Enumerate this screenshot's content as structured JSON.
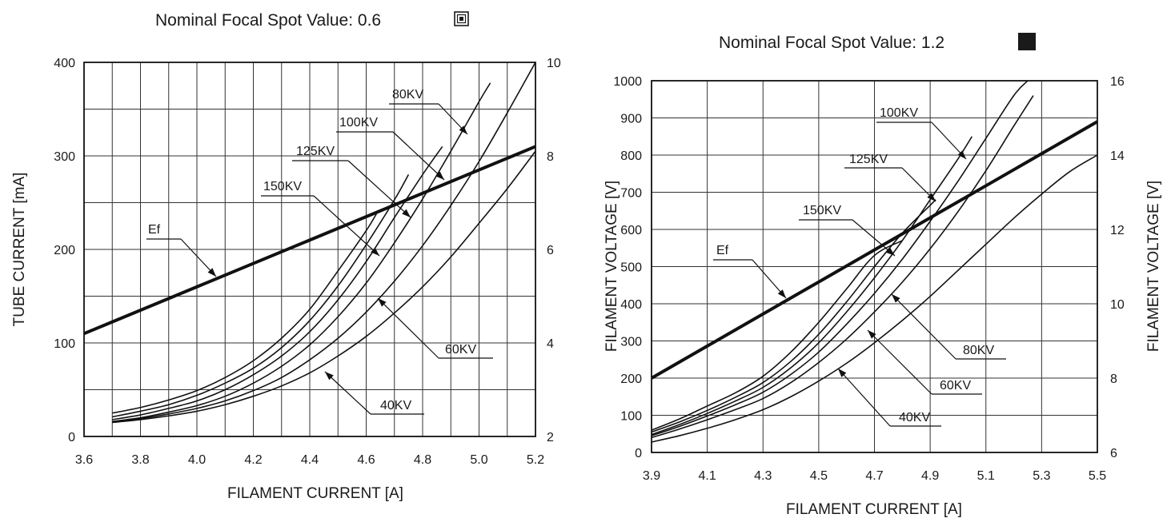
{
  "chart_data": [
    {
      "type": "line",
      "title": "Nominal Focal Spot Value: 0.6",
      "title_icon": "focal-spot-small-icon",
      "xlabel": "FILAMENT CURRENT  [A]",
      "ylabel": "TUBE CURRENT  [mA]",
      "y2label": "",
      "xlim": [
        3.6,
        5.2
      ],
      "ylim": [
        0,
        400
      ],
      "y2lim": [
        2,
        10
      ],
      "grid": true,
      "xticks": [
        "3.6",
        "3.8",
        "4.0",
        "4.2",
        "4.4",
        "4.6",
        "4.8",
        "5.0",
        "5.2"
      ],
      "yticks": [
        "0",
        "100",
        "200",
        "300",
        "400"
      ],
      "y2ticks": [
        "2",
        "4",
        "6",
        "8",
        "10"
      ],
      "series": [
        {
          "name": "Ef",
          "axis": "right",
          "bold": true,
          "x": [
            3.6,
            5.2
          ],
          "y": [
            4.2,
            8.2
          ]
        },
        {
          "name": "150KV",
          "x": [
            3.7,
            3.8,
            3.9,
            4.0,
            4.1,
            4.2,
            4.3,
            4.4,
            4.5,
            4.6,
            4.64
          ],
          "y": [
            25,
            31,
            39,
            49,
            63,
            81,
            105,
            136,
            177,
            220,
            240
          ]
        },
        {
          "name": "125KV",
          "x": [
            3.7,
            3.8,
            3.9,
            4.0,
            4.1,
            4.2,
            4.3,
            4.4,
            4.5,
            4.6,
            4.7,
            4.75
          ],
          "y": [
            21,
            27,
            34,
            44,
            57,
            73,
            95,
            124,
            161,
            205,
            253,
            280
          ]
        },
        {
          "name": "100KV",
          "x": [
            3.7,
            3.8,
            3.9,
            4.0,
            4.1,
            4.2,
            4.3,
            4.4,
            4.5,
            4.6,
            4.7,
            4.8,
            4.87
          ],
          "y": [
            18,
            23,
            30,
            38,
            50,
            66,
            86,
            112,
            146,
            187,
            234,
            280,
            310
          ]
        },
        {
          "name": "80KV",
          "x": [
            3.7,
            3.8,
            3.9,
            4.0,
            4.1,
            4.2,
            4.3,
            4.4,
            4.5,
            4.6,
            4.7,
            4.8,
            4.9,
            5.0,
            5.04
          ],
          "y": [
            16,
            20,
            26,
            33,
            43,
            57,
            75,
            98,
            128,
            164,
            207,
            254,
            305,
            358,
            378
          ]
        },
        {
          "name": "60KV",
          "x": [
            3.7,
            3.8,
            3.9,
            4.0,
            4.1,
            4.2,
            4.3,
            4.4,
            4.5,
            4.6,
            4.7,
            4.8,
            4.9,
            5.0,
            5.1,
            5.2
          ],
          "y": [
            15,
            19,
            24,
            30,
            38,
            49,
            63,
            82,
            105,
            133,
            166,
            204,
            247,
            294,
            346,
            400
          ]
        },
        {
          "name": "40KV",
          "x": [
            3.7,
            3.8,
            3.9,
            4.0,
            4.1,
            4.2,
            4.3,
            4.4,
            4.5,
            4.6,
            4.7,
            4.8,
            4.9,
            5.0,
            5.1,
            5.2
          ],
          "y": [
            15,
            18,
            22,
            27,
            34,
            43,
            54,
            68,
            86,
            107,
            132,
            160,
            192,
            228,
            265,
            305
          ]
        }
      ]
    },
    {
      "type": "line",
      "title": "Nominal Focal Spot Value: 1.2",
      "title_icon": "focal-spot-large-icon",
      "xlabel": "FILAMENT CURRENT  [A]",
      "ylabel": "FILAMENT VOLTAGE  [V]",
      "y2label": "FILAMENT VOLTAGE  [V]",
      "xlim": [
        3.9,
        5.5
      ],
      "ylim": [
        0,
        1000
      ],
      "y2lim": [
        6,
        16
      ],
      "grid": true,
      "xticks": [
        "3.9",
        "4.1",
        "4.3",
        "4.5",
        "4.7",
        "4.9",
        "5.1",
        "5.3",
        "5.5"
      ],
      "yticks": [
        "0",
        "100",
        "200",
        "300",
        "400",
        "500",
        "600",
        "700",
        "800",
        "900",
        "1000"
      ],
      "y2ticks": [
        "6",
        "8",
        "10",
        "12",
        "14",
        "16"
      ],
      "series": [
        {
          "name": "Ef",
          "axis": "right",
          "bold": true,
          "x": [
            3.9,
            5.5
          ],
          "y": [
            8.0,
            14.9
          ]
        },
        {
          "name": "150KV",
          "x": [
            3.9,
            4.0,
            4.1,
            4.2,
            4.3,
            4.4,
            4.5,
            4.6,
            4.7,
            4.8
          ],
          "y": [
            60,
            90,
            125,
            160,
            205,
            270,
            350,
            440,
            530,
            570
          ]
        },
        {
          "name": "125KV",
          "x": [
            3.9,
            4.0,
            4.1,
            4.2,
            4.3,
            4.4,
            4.5,
            4.6,
            4.7,
            4.8,
            4.9,
            4.92
          ],
          "y": [
            55,
            82,
            113,
            148,
            188,
            245,
            318,
            405,
            500,
            590,
            665,
            680
          ]
        },
        {
          "name": "100KV",
          "x": [
            3.9,
            4.0,
            4.1,
            4.2,
            4.3,
            4.4,
            4.5,
            4.6,
            4.7,
            4.8,
            4.9,
            5.0,
            5.05
          ],
          "y": [
            48,
            75,
            105,
            138,
            175,
            228,
            295,
            378,
            470,
            570,
            680,
            790,
            850
          ]
        },
        {
          "name": "80KV",
          "x": [
            3.9,
            4.0,
            4.1,
            4.2,
            4.3,
            4.4,
            4.5,
            4.6,
            4.7,
            4.8,
            4.9,
            5.0,
            5.1,
            5.2,
            5.25
          ],
          "y": [
            45,
            70,
            98,
            128,
            162,
            210,
            270,
            345,
            428,
            520,
            622,
            730,
            845,
            960,
            1000
          ]
        },
        {
          "name": "60KV",
          "x": [
            3.9,
            4.0,
            4.1,
            4.2,
            4.3,
            4.4,
            4.5,
            4.6,
            4.7,
            4.8,
            4.9,
            5.0,
            5.1,
            5.2,
            5.27
          ],
          "y": [
            40,
            63,
            88,
            115,
            145,
            188,
            242,
            305,
            378,
            458,
            548,
            648,
            758,
            878,
            960
          ]
        },
        {
          "name": "40KV",
          "x": [
            3.9,
            4.0,
            4.1,
            4.2,
            4.3,
            4.4,
            4.5,
            4.6,
            4.7,
            4.8,
            4.9,
            5.0,
            5.1,
            5.2,
            5.3,
            5.4,
            5.5
          ],
          "y": [
            28,
            45,
            65,
            88,
            115,
            150,
            192,
            240,
            295,
            355,
            420,
            490,
            560,
            630,
            695,
            755,
            800
          ]
        }
      ]
    }
  ]
}
